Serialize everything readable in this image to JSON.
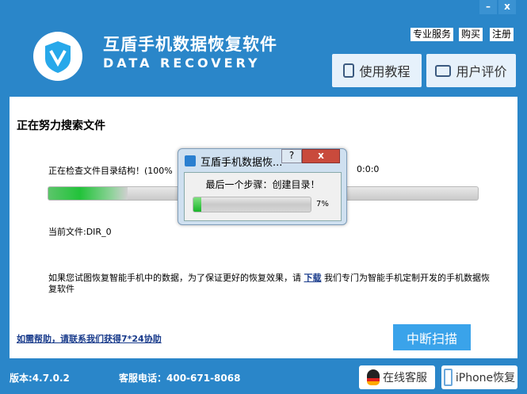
{
  "window": {
    "minimize": "–",
    "close": "x"
  },
  "header": {
    "title": "互盾手机数据恢复软件",
    "subtitle": "DATA RECOVERY",
    "links": [
      "专业服务",
      "购买",
      "注册"
    ],
    "tutorial": "使用教程",
    "review": "用户评价"
  },
  "main": {
    "heading": "正在努力搜索文件",
    "status": "正在检查文件目录结构！(100%",
    "elapsed": "0:0:0",
    "current_file_label": "当前文件:DIR_0",
    "notice_before": "如果您试图恢复智能手机中的数据，为了保证更好的恢复效果，请 ",
    "notice_link": "下载",
    "notice_after": " 我们专门为智能手机定制开发的手机数据恢复软件",
    "help_link": "如需帮助，请联系我们获得7*24协助",
    "stop_button": "中断扫描"
  },
  "dialog": {
    "title": "互盾手机数据恢...",
    "help": "?",
    "close": "x",
    "message": "最后一个步骤：创建目录！",
    "progress_label": "7%",
    "progress": 7
  },
  "footer": {
    "version": "版本:4.7.0.2",
    "phone": "客服电话：400-671-8068",
    "online_service": "在线客服",
    "iphone_recovery": "iPhone恢复"
  },
  "colors": {
    "brand": "#2a86c9",
    "button": "#3aa3ea",
    "progress": "#22c33a"
  }
}
